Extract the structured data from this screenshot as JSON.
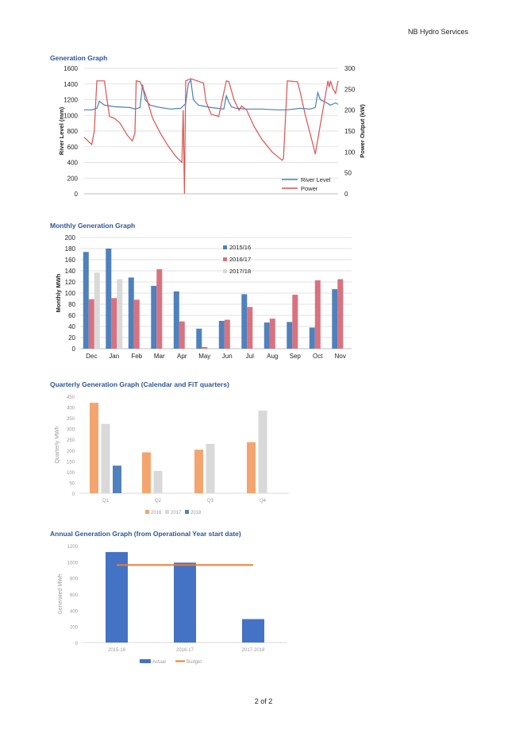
{
  "header": {
    "org": "NB Hydro Services"
  },
  "footer": {
    "page": "2 of 2"
  },
  "charts": [
    {
      "title": "Generation Graph",
      "type": "line",
      "ylabel": "River Level (mm)",
      "y2label": "Power Output (kW)",
      "ylim": [
        0,
        1600
      ],
      "yticks": [
        0,
        200,
        400,
        600,
        800,
        1000,
        1200,
        1400,
        1600
      ],
      "y2lim": [
        0,
        300
      ],
      "y2ticks": [
        0,
        50,
        100,
        150,
        200,
        250,
        300
      ],
      "legend": "bottom-right",
      "series": [
        {
          "name": "River Level",
          "color": "#4a7ebb",
          "axis": "left",
          "x": [
            0,
            0.03,
            0.05,
            0.06,
            0.08,
            0.12,
            0.18,
            0.2,
            0.22,
            0.23,
            0.24,
            0.26,
            0.3,
            0.34,
            0.38,
            0.4,
            0.41,
            0.42,
            0.43,
            0.45,
            0.5,
            0.55,
            0.56,
            0.57,
            0.58,
            0.6,
            0.64,
            0.7,
            0.76,
            0.8,
            0.85,
            0.89,
            0.91,
            0.92,
            0.93,
            0.95,
            0.97,
            0.99,
            1.0
          ],
          "values": [
            1070,
            1070,
            1090,
            1180,
            1130,
            1110,
            1100,
            1080,
            1100,
            1390,
            1200,
            1130,
            1100,
            1080,
            1090,
            1150,
            1400,
            1450,
            1200,
            1130,
            1100,
            1080,
            1250,
            1170,
            1110,
            1090,
            1080,
            1080,
            1070,
            1070,
            1090,
            1080,
            1100,
            1290,
            1200,
            1170,
            1130,
            1160,
            1140
          ]
        },
        {
          "name": "Power",
          "color": "#d9534f",
          "axis": "right",
          "x": [
            0,
            0.03,
            0.04,
            0.05,
            0.08,
            0.09,
            0.1,
            0.12,
            0.14,
            0.17,
            0.19,
            0.2,
            0.205,
            0.22,
            0.24,
            0.25,
            0.27,
            0.3,
            0.33,
            0.36,
            0.385,
            0.39,
            0.395,
            0.4,
            0.42,
            0.47,
            0.48,
            0.5,
            0.53,
            0.56,
            0.57,
            0.59,
            0.61,
            0.62,
            0.64,
            0.67,
            0.7,
            0.74,
            0.78,
            0.785,
            0.8,
            0.84,
            0.85,
            0.87,
            0.9,
            0.91,
            0.92,
            0.96,
            0.965,
            0.97,
            0.98,
            0.99,
            1.0
          ],
          "values": [
            135,
            118,
            150,
            270,
            270,
            225,
            185,
            180,
            170,
            140,
            126,
            145,
            270,
            268,
            240,
            220,
            180,
            145,
            115,
            90,
            75,
            200,
            0,
            270,
            275,
            265,
            220,
            190,
            185,
            270,
            268,
            225,
            200,
            210,
            200,
            160,
            130,
            100,
            80,
            85,
            270,
            268,
            245,
            190,
            120,
            95,
            130,
            270,
            255,
            270,
            250,
            240,
            270
          ]
        }
      ]
    },
    {
      "title": "Monthly Generation Graph",
      "type": "bar",
      "ylabel": "Monthly MWh",
      "ylim": [
        0,
        200
      ],
      "yticks": [
        0,
        20,
        40,
        60,
        80,
        100,
        120,
        140,
        160,
        180,
        200
      ],
      "legend": "right",
      "categories": [
        "Dec",
        "Jan",
        "Feb",
        "Mar",
        "Apr",
        "May",
        "Jun",
        "Jul",
        "Aug",
        "Sep",
        "Oct",
        "Nov"
      ],
      "series": [
        {
          "name": "2015/16",
          "color": "#4f81bd",
          "values": [
            174,
            180,
            128,
            113,
            103,
            36,
            50,
            98,
            47,
            48,
            38,
            107
          ]
        },
        {
          "name": "2016/17",
          "color": "#d9727f",
          "values": [
            89,
            91,
            88,
            143,
            49,
            3,
            52,
            75,
            54,
            97,
            123,
            125
          ]
        },
        {
          "name": "2017/18",
          "color": "#d9d9d9",
          "values": [
            137,
            125,
            null,
            null,
            null,
            null,
            null,
            null,
            null,
            null,
            null,
            null
          ]
        }
      ]
    },
    {
      "title": "Quarterly Generation Graph (Calendar and FiT quarters)",
      "type": "bar",
      "ylabel": "Quarterly MWh",
      "ylim": [
        0,
        450
      ],
      "yticks": [
        0,
        50,
        100,
        150,
        200,
        250,
        300,
        350,
        400,
        450
      ],
      "legend": "bottom",
      "categories": [
        "Q1",
        "Q2",
        "Q3",
        "Q4"
      ],
      "series": [
        {
          "name": "2016",
          "color": "#f4a56f",
          "values": [
            420,
            190,
            202,
            237
          ]
        },
        {
          "name": "2017",
          "color": "#d9d9d9",
          "values": [
            322,
            104,
            229,
            384
          ]
        },
        {
          "name": "2018",
          "color": "#4f81bd",
          "values": [
            128,
            null,
            null,
            null
          ]
        }
      ]
    },
    {
      "title": "Annual Generation Graph (from Operational Year start date)",
      "type": "bar",
      "ylabel": "Generated MWh",
      "ylim": [
        0,
        1200
      ],
      "yticks": [
        0,
        200,
        400,
        600,
        800,
        1000,
        1200
      ],
      "legend": "bottom",
      "categories": [
        "2015-16",
        "2016-17",
        "2017-2018"
      ],
      "series": [
        {
          "name": "Actual",
          "color": "#4472c4",
          "values": [
            1120,
            990,
            290
          ]
        },
        {
          "name": "Budget",
          "color": "#ed7d31",
          "type": "line",
          "values": [
            960,
            960,
            960
          ]
        }
      ]
    }
  ]
}
